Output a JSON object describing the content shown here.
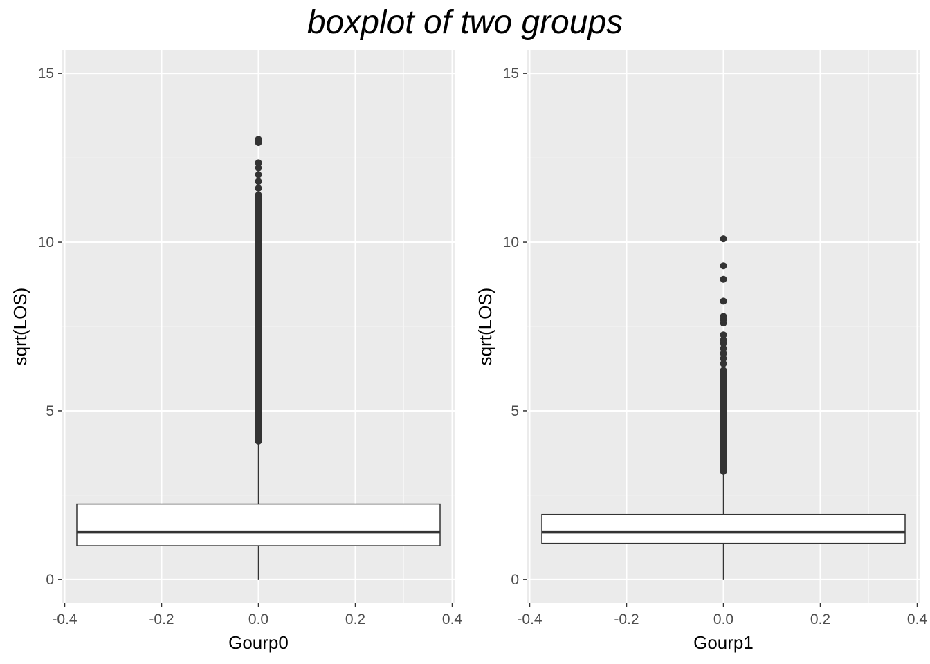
{
  "figure": {
    "title": "boxplot of two groups"
  },
  "chart_data": [
    {
      "type": "boxplot",
      "name": "group0-panel",
      "xlabel": "Gourp0",
      "ylabel": "sqrt(LOS)",
      "xlim": [
        -0.405,
        0.405
      ],
      "ylim": [
        -0.7,
        15.7
      ],
      "x_ticks": [
        -0.4,
        -0.2,
        0.0,
        0.2,
        0.4
      ],
      "x_tick_labels": [
        "-0.4",
        "-0.2",
        "0.0",
        "0.2",
        "0.4"
      ],
      "y_ticks": [
        0,
        5,
        10,
        15
      ],
      "y_tick_labels": [
        "0",
        "5",
        "10",
        "15"
      ],
      "grid": true,
      "box": {
        "x": 0.0,
        "x_extent": [
          -0.375,
          0.375
        ],
        "min": 0.0,
        "q1": 1.0,
        "median": 1.41,
        "q3": 2.24,
        "whisker_high": 4.1
      },
      "outliers_dense_range": [
        4.1,
        11.4
      ],
      "outliers": [
        11.6,
        11.8,
        12.0,
        12.2,
        12.35,
        12.95,
        13.0,
        13.05
      ]
    },
    {
      "type": "boxplot",
      "name": "group1-panel",
      "xlabel": "Gourp1",
      "ylabel": "sqrt(LOS)",
      "xlim": [
        -0.405,
        0.405
      ],
      "ylim": [
        -0.7,
        15.7
      ],
      "x_ticks": [
        -0.4,
        -0.2,
        0.0,
        0.2,
        0.4
      ],
      "x_tick_labels": [
        "-0.4",
        "-0.2",
        "0.0",
        "0.2",
        "0.4"
      ],
      "y_ticks": [
        0,
        5,
        10,
        15
      ],
      "y_tick_labels": [
        "0",
        "5",
        "10",
        "15"
      ],
      "grid": true,
      "box": {
        "x": 0.0,
        "x_extent": [
          -0.375,
          0.375
        ],
        "min": 0.0,
        "q1": 1.07,
        "median": 1.41,
        "q3": 1.93,
        "whisker_high": 3.2
      },
      "outliers_dense_range": [
        3.2,
        6.2
      ],
      "outliers": [
        6.4,
        6.55,
        6.7,
        6.85,
        7.0,
        7.1,
        7.25,
        7.6,
        7.7,
        7.8,
        8.25,
        8.9,
        9.3,
        10.1
      ]
    }
  ]
}
